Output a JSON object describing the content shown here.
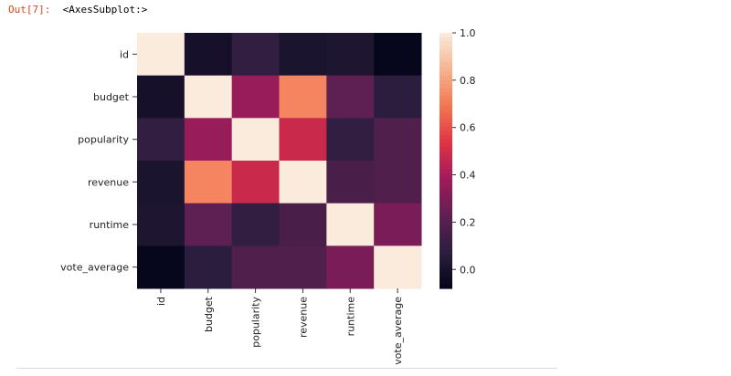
{
  "cell": {
    "prompt": "Out[7]:",
    "result": "<AxesSubplot:>"
  },
  "chart_data": {
    "type": "heatmap",
    "rows": [
      "id",
      "budget",
      "popularity",
      "revenue",
      "runtime",
      "vote_average"
    ],
    "columns": [
      "id",
      "budget",
      "popularity",
      "revenue",
      "runtime",
      "vote_average"
    ],
    "values": [
      [
        1.0,
        -0.01,
        0.09,
        0.01,
        0.02,
        -0.07
      ],
      [
        -0.01,
        1.0,
        0.36,
        0.73,
        0.22,
        0.07
      ],
      [
        0.09,
        0.36,
        1.0,
        0.48,
        0.09,
        0.18
      ],
      [
        0.01,
        0.73,
        0.48,
        1.0,
        0.16,
        0.18
      ],
      [
        0.02,
        0.22,
        0.09,
        0.16,
        1.0,
        0.29
      ],
      [
        -0.07,
        0.07,
        0.18,
        0.18,
        0.29,
        1.0
      ]
    ],
    "colormap": [
      "#03051A",
      "#2C1E3E",
      "#611F53",
      "#A11A5B",
      "#E13342",
      "#F37651",
      "#F6B48F",
      "#FAEBDD"
    ],
    "vmin": -0.08,
    "vmax": 1.0,
    "colorbar": {
      "ticks": [
        0.0,
        0.2,
        0.4,
        0.6,
        0.8,
        1.0
      ],
      "tick_labels": [
        "0.0",
        "0.2",
        "0.4",
        "0.6",
        "0.8",
        "1.0"
      ]
    },
    "title": "",
    "xlabel": "",
    "ylabel": ""
  }
}
